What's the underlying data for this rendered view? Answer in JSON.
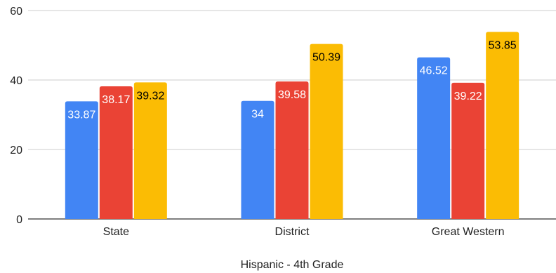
{
  "chart_data": {
    "type": "bar",
    "xlabel": "Hispanic - 4th Grade",
    "ylabel": "",
    "ylim": [
      0,
      60
    ],
    "yticks": [
      0,
      20,
      40,
      60
    ],
    "grid": true,
    "categories": [
      "State",
      "District",
      "Great Western"
    ],
    "series": [
      {
        "values": [
          33.87,
          34,
          46.52
        ],
        "color": "#4285F4",
        "label_color": "#ffffff"
      },
      {
        "values": [
          38.17,
          39.58,
          39.22
        ],
        "color": "#EA4335",
        "label_color": "#ffffff"
      },
      {
        "values": [
          39.32,
          50.39,
          53.85
        ],
        "color": "#FBBC04",
        "label_color": "#000000"
      }
    ]
  }
}
